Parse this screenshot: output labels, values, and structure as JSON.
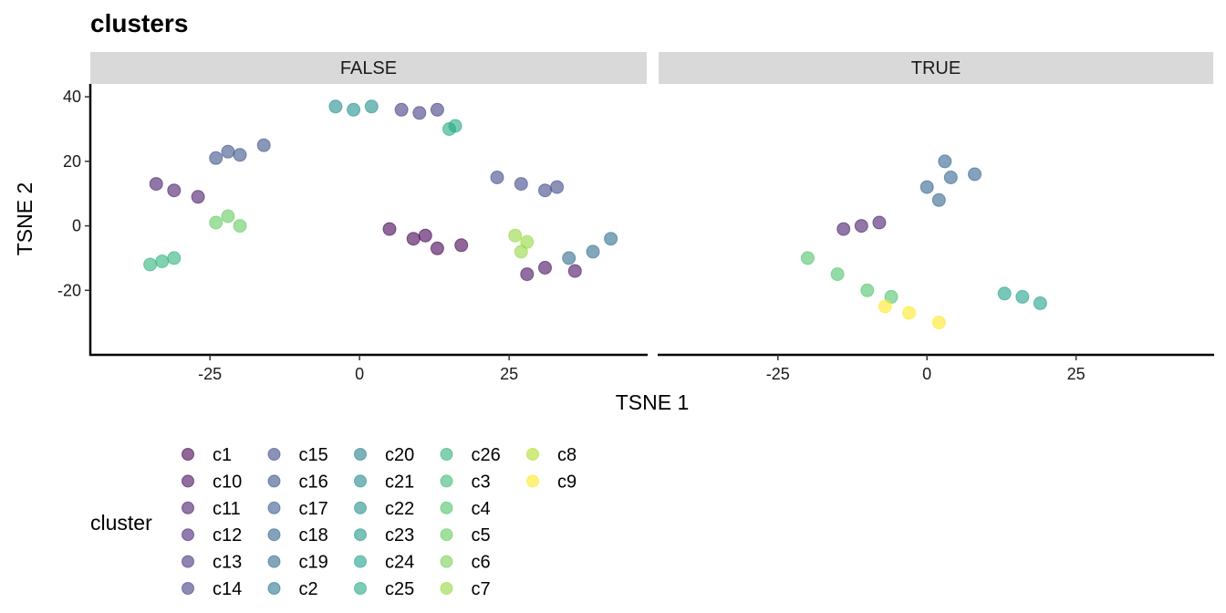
{
  "chart_data": {
    "type": "scatter",
    "title": "clusters",
    "xlabel": "TSNE 1",
    "ylabel": "TSNE 2",
    "facets": [
      "FALSE",
      "TRUE"
    ],
    "xlim": [
      -45,
      48
    ],
    "ylim": [
      -40,
      44
    ],
    "x_ticks": [
      -25,
      0,
      25
    ],
    "x_tick_labels": [
      "-25",
      "0",
      "25"
    ],
    "y_ticks": [
      -20,
      0,
      20,
      40
    ],
    "y_tick_labels": [
      "-20",
      "0",
      "20",
      "40"
    ],
    "grid": false,
    "legend": {
      "title": "cluster",
      "position": "bottom",
      "entries": [
        {
          "label": "c1",
          "color": "#440154"
        },
        {
          "label": "c10",
          "color": "#470E61"
        },
        {
          "label": "c11",
          "color": "#481B6D"
        },
        {
          "label": "c12",
          "color": "#482576"
        },
        {
          "label": "c13",
          "color": "#46327E"
        },
        {
          "label": "c14",
          "color": "#433D84"
        },
        {
          "label": "c15",
          "color": "#3F4788"
        },
        {
          "label": "c16",
          "color": "#3B528B"
        },
        {
          "label": "c17",
          "color": "#375B8D"
        },
        {
          "label": "c18",
          "color": "#32648E"
        },
        {
          "label": "c19",
          "color": "#2E6D8E"
        },
        {
          "label": "c2",
          "color": "#2A768E"
        },
        {
          "label": "c20",
          "color": "#277E8E"
        },
        {
          "label": "c21",
          "color": "#24878E"
        },
        {
          "label": "c22",
          "color": "#21908C"
        },
        {
          "label": "c23",
          "color": "#1F988B"
        },
        {
          "label": "c24",
          "color": "#1FA188"
        },
        {
          "label": "c25",
          "color": "#23A983"
        },
        {
          "label": "c26",
          "color": "#2EB37C"
        },
        {
          "label": "c3",
          "color": "#3ABA76"
        },
        {
          "label": "c4",
          "color": "#4EC36B"
        },
        {
          "label": "c5",
          "color": "#63CB5F"
        },
        {
          "label": "c6",
          "color": "#7AD151"
        },
        {
          "label": "c7",
          "color": "#94D840"
        },
        {
          "label": "c8",
          "color": "#B1DD2F"
        },
        {
          "label": "c9",
          "color": "#FDE725"
        }
      ]
    },
    "series": [
      {
        "name": "c1",
        "facet": "FALSE",
        "x": [
          9,
          13,
          5,
          17,
          11
        ],
        "y": [
          -4,
          -7,
          -1,
          -6,
          -3
        ]
      },
      {
        "name": "c10",
        "facet": "FALSE",
        "x": [
          36,
          31,
          28
        ],
        "y": [
          -14,
          -13,
          -15
        ]
      },
      {
        "name": "c11",
        "facet": "FALSE",
        "x": [
          -31,
          -34,
          -27
        ],
        "y": [
          11,
          13,
          9
        ]
      },
      {
        "name": "c11",
        "facet": "TRUE",
        "x": [
          -11,
          -14,
          -8
        ],
        "y": [
          0,
          -1,
          1
        ]
      },
      {
        "name": "c14",
        "facet": "FALSE",
        "x": [
          10,
          13,
          7
        ],
        "y": [
          35,
          36,
          36
        ]
      },
      {
        "name": "c15",
        "facet": "FALSE",
        "x": [
          27,
          31,
          23,
          33
        ],
        "y": [
          13,
          11,
          15,
          12
        ]
      },
      {
        "name": "c16",
        "facet": "FALSE",
        "x": [
          -20,
          -24,
          -16,
          -22
        ],
        "y": [
          22,
          21,
          25,
          23
        ]
      },
      {
        "name": "c18",
        "facet": "TRUE",
        "x": [
          4,
          0,
          8,
          3,
          2
        ],
        "y": [
          15,
          12,
          16,
          20,
          8
        ]
      },
      {
        "name": "c19",
        "facet": "FALSE",
        "x": [
          39,
          35,
          42
        ],
        "y": [
          -8,
          -10,
          -4
        ]
      },
      {
        "name": "c22",
        "facet": "FALSE",
        "x": [
          -1,
          2,
          -4
        ],
        "y": [
          36,
          37,
          37
        ]
      },
      {
        "name": "c24",
        "facet": "TRUE",
        "x": [
          16,
          13,
          19
        ],
        "y": [
          -22,
          -21,
          -24
        ]
      },
      {
        "name": "c25",
        "facet": "FALSE",
        "x": [
          16,
          15
        ],
        "y": [
          31,
          30
        ]
      },
      {
        "name": "c26",
        "facet": "FALSE",
        "x": [
          -33,
          -31,
          -35
        ],
        "y": [
          -11,
          -10,
          -12
        ]
      },
      {
        "name": "c4",
        "facet": "TRUE",
        "x": [
          -15,
          -10,
          -20,
          -6
        ],
        "y": [
          -15,
          -20,
          -10,
          -22
        ]
      },
      {
        "name": "c5",
        "facet": "FALSE",
        "x": [
          -24,
          -22,
          -20
        ],
        "y": [
          1,
          3,
          0
        ]
      },
      {
        "name": "c7",
        "facet": "FALSE",
        "x": [
          28,
          27,
          26
        ],
        "y": [
          -5,
          -8,
          -3
        ]
      },
      {
        "name": "c9",
        "facet": "TRUE",
        "x": [
          -3,
          2,
          -7
        ],
        "y": [
          -27,
          -30,
          -25
        ]
      }
    ]
  }
}
